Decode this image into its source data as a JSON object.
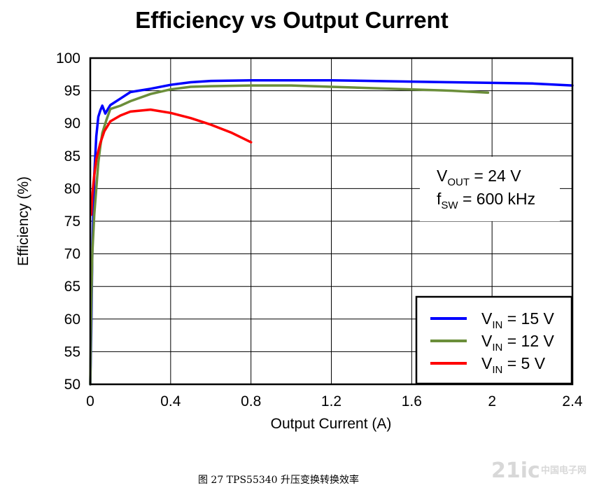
{
  "chart_data": {
    "type": "line",
    "title": "Efficiency vs Output Current",
    "xlabel": "Output Current (A)",
    "ylabel": "Efficiency (%)",
    "xlim": [
      0,
      2.4
    ],
    "ylim": [
      50,
      100
    ],
    "x_ticks": [
      "0",
      "0.4",
      "0.8",
      "1.2",
      "1.6",
      "2",
      "2.4"
    ],
    "x_tick_values": [
      0,
      0.4,
      0.8,
      1.2,
      1.6,
      2.0,
      2.4
    ],
    "y_ticks": [
      "50",
      "55",
      "60",
      "65",
      "70",
      "75",
      "80",
      "85",
      "90",
      "95",
      "100"
    ],
    "y_tick_values": [
      50,
      55,
      60,
      65,
      70,
      75,
      80,
      85,
      90,
      95,
      100
    ],
    "grid": true,
    "legend_position": "bottom-right",
    "annotation": {
      "line1": {
        "main": "V",
        "sub": "OUT",
        "rest": " = 24 V"
      },
      "line2": {
        "main": "f",
        "sub": "SW",
        "rest": " = 600 kHz"
      }
    },
    "series": [
      {
        "label_main": "V",
        "label_sub": "IN",
        "label_rest": " = 15 V",
        "color": "#0000ff",
        "x": [
          0,
          0.005,
          0.01,
          0.02,
          0.03,
          0.04,
          0.05,
          0.06,
          0.075,
          0.09,
          0.1,
          0.15,
          0.2,
          0.3,
          0.4,
          0.5,
          0.6,
          0.8,
          1.0,
          1.2,
          1.4,
          1.6,
          1.8,
          2.0,
          2.2,
          2.4
        ],
        "y": [
          50,
          58,
          70,
          82,
          88,
          91,
          92,
          92.7,
          91.5,
          92.3,
          92.8,
          93.8,
          94.8,
          95.3,
          95.9,
          96.3,
          96.5,
          96.6,
          96.6,
          96.6,
          96.5,
          96.4,
          96.3,
          96.2,
          96.1,
          95.8
        ]
      },
      {
        "label_main": "V",
        "label_sub": "IN",
        "label_rest": " = 12 V",
        "color": "#6b8e3a",
        "x": [
          0,
          0.005,
          0.01,
          0.02,
          0.03,
          0.04,
          0.05,
          0.06,
          0.08,
          0.1,
          0.15,
          0.2,
          0.3,
          0.4,
          0.5,
          0.6,
          0.8,
          1.0,
          1.2,
          1.4,
          1.6,
          1.8,
          1.98
        ],
        "y": [
          50,
          62,
          70,
          76,
          80,
          84,
          86.5,
          88.5,
          90.5,
          92.2,
          92.7,
          93.4,
          94.5,
          95.2,
          95.6,
          95.7,
          95.8,
          95.8,
          95.6,
          95.4,
          95.2,
          95.0,
          94.7
        ]
      },
      {
        "label_main": "V",
        "label_sub": "IN",
        "label_rest": " = 5 V",
        "color": "#ff0000",
        "x": [
          0.005,
          0.01,
          0.02,
          0.03,
          0.05,
          0.07,
          0.1,
          0.15,
          0.2,
          0.3,
          0.4,
          0.5,
          0.6,
          0.7,
          0.8
        ],
        "y": [
          76,
          79,
          82,
          84.5,
          87,
          88.8,
          90.3,
          91.2,
          91.8,
          92.1,
          91.6,
          90.8,
          89.8,
          88.6,
          87.1
        ]
      }
    ]
  },
  "caption": "图 27 TPS55340  升压变换转换效率",
  "watermark": {
    "main": "21ic",
    "sub": "中国电子网"
  }
}
